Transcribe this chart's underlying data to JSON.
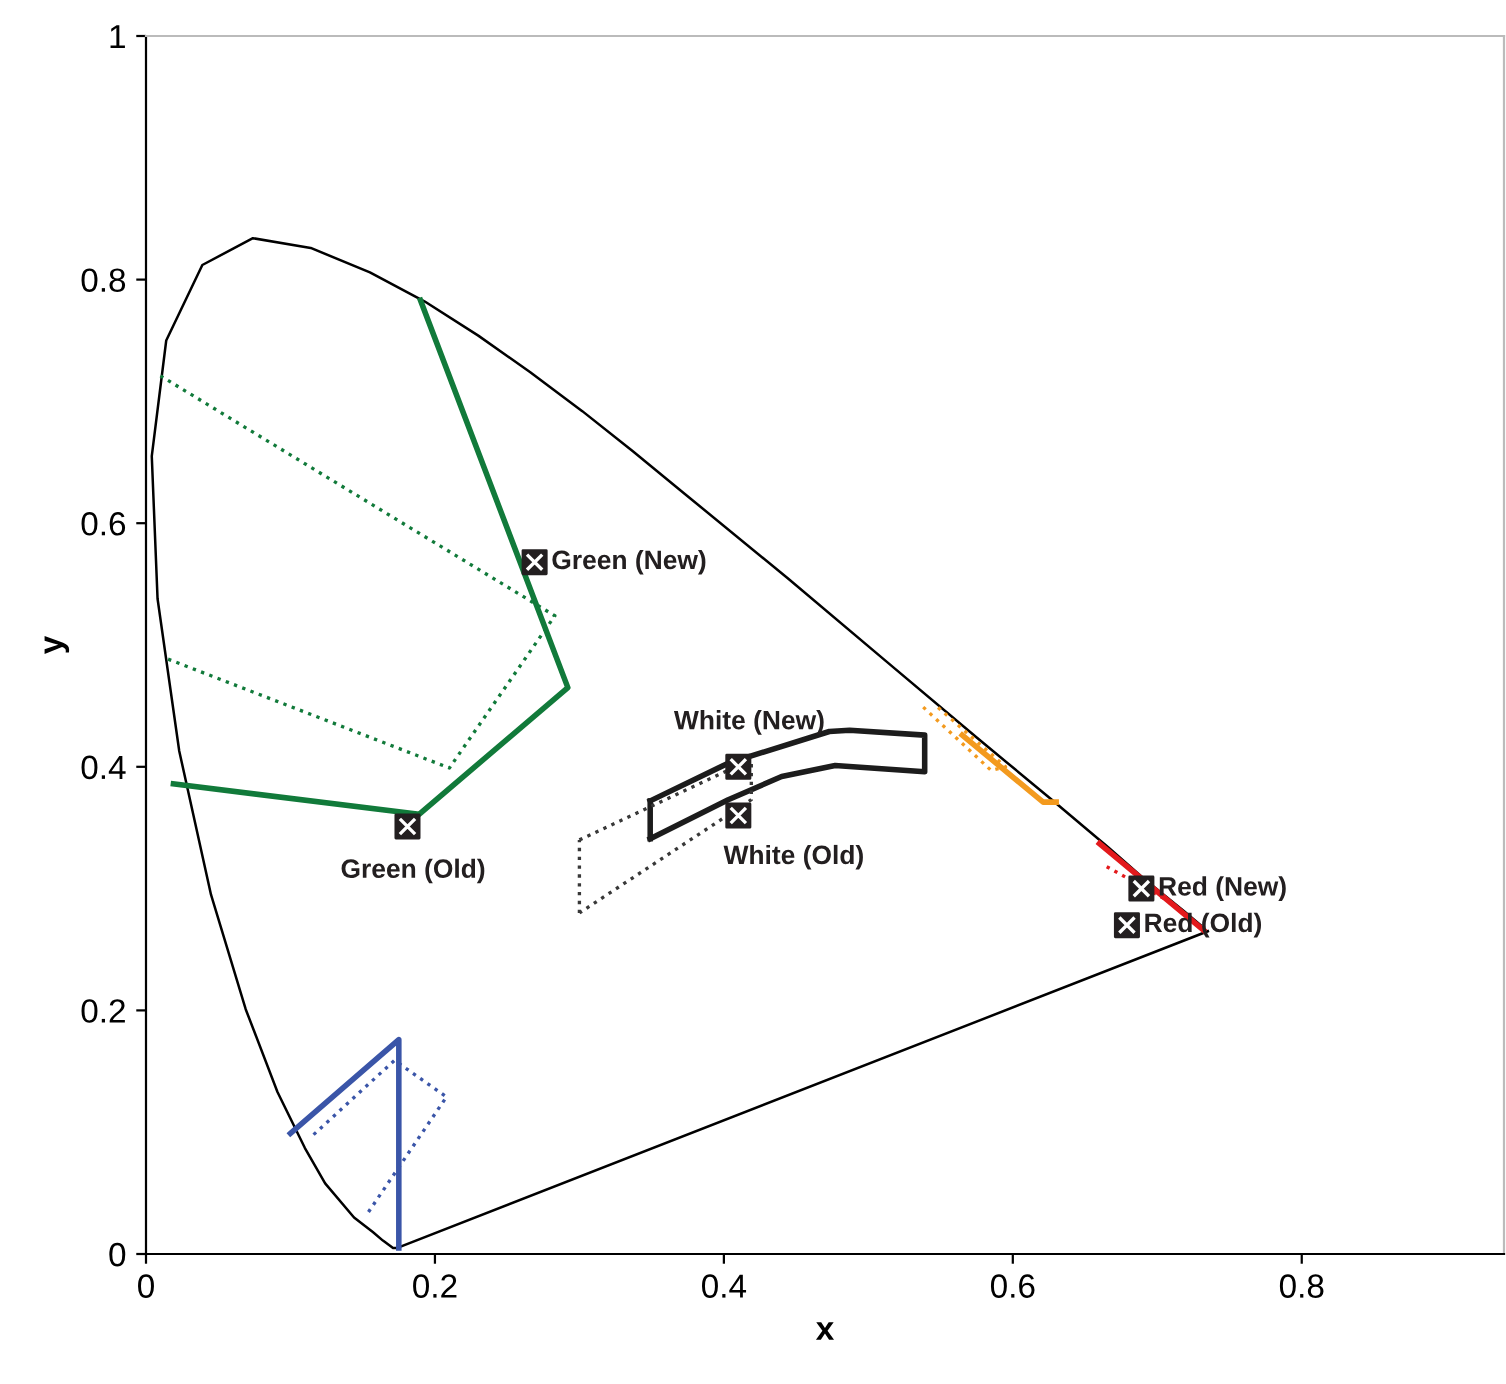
{
  "chart_data": {
    "type": "line",
    "xlabel": "x",
    "ylabel": "y",
    "xlim": [
      0,
      0.94
    ],
    "ylim": [
      0,
      1
    ],
    "xticks": [
      0,
      0.2,
      0.4,
      0.6,
      0.8
    ],
    "yticks": [
      0,
      0.2,
      0.4,
      0.6,
      0.8,
      1
    ],
    "grid": false,
    "legend": false,
    "marker": "none",
    "series": [
      {
        "color": "#000000",
        "line_style": "solid",
        "x": [
          0.735,
          0.174,
          0.171,
          0.164,
          0.157,
          0.144,
          0.124,
          0.11,
          0.091,
          0.069,
          0.045,
          0.023,
          0.008,
          0.004,
          0.014,
          0.039,
          0.074,
          0.114,
          0.155,
          0.193,
          0.23,
          0.266,
          0.302,
          0.337,
          0.373,
          0.444,
          0.512,
          0.575,
          0.627,
          0.666,
          0.691,
          0.719,
          0.73
        ],
        "values": [
          0.265,
          0.005,
          0.005,
          0.011,
          0.018,
          0.03,
          0.058,
          0.087,
          0.133,
          0.201,
          0.295,
          0.413,
          0.538,
          0.655,
          0.75,
          0.812,
          0.834,
          0.826,
          0.806,
          0.782,
          0.754,
          0.724,
          0.692,
          0.659,
          0.624,
          0.555,
          0.487,
          0.424,
          0.373,
          0.334,
          0.308,
          0.281,
          0.27
        ]
      },
      {
        "type": "line",
        "color": "#117a3a",
        "line_style": "solid",
        "x": [
          0.19,
          0.292,
          0.189,
          0.019
        ],
        "values": [
          0.783,
          0.465,
          0.361,
          0.386
        ]
      },
      {
        "type": "line",
        "color": "#117a3a",
        "line_style": "dotted",
        "x": [
          0.01,
          0.283,
          0.21,
          0.014
        ],
        "values": [
          0.721,
          0.524,
          0.399,
          0.489
        ]
      },
      {
        "type": "line",
        "color": "#1c1c1c",
        "line_style": "solid",
        "x": [
          0.349,
          0.403,
          0.473,
          0.487,
          0.539,
          0.539,
          0.477,
          0.44,
          0.403,
          0.349
        ],
        "values": [
          0.372,
          0.403,
          0.429,
          0.43,
          0.426,
          0.396,
          0.401,
          0.392,
          0.373,
          0.341
        ]
      },
      {
        "type": "line",
        "color": "#1c1c1c",
        "line_style": "solid",
        "x": [
          0.349,
          0.349
        ],
        "values": [
          0.341,
          0.372
        ]
      },
      {
        "type": "line",
        "color": "#383838",
        "line_style": "dotted",
        "x": [
          0.3,
          0.419,
          0.419,
          0.3
        ],
        "values": [
          0.34,
          0.406,
          0.373,
          0.28
        ]
      },
      {
        "type": "line",
        "color": "#383838",
        "line_style": "dotted",
        "x": [
          0.3,
          0.3
        ],
        "values": [
          0.28,
          0.34
        ]
      },
      {
        "type": "line",
        "color": "#f39a1e",
        "line_style": "solid",
        "x": [
          0.565,
          0.621,
          0.63
        ],
        "values": [
          0.426,
          0.371,
          0.371
        ]
      },
      {
        "type": "line",
        "color": "#f39a1e",
        "line_style": "dotted",
        "x": [
          0.538,
          0.585,
          0.595,
          0.548
        ],
        "values": [
          0.449,
          0.397,
          0.4,
          0.449
        ]
      },
      {
        "type": "line",
        "color": "#e3191c",
        "line_style": "solid",
        "x": [
          0.66,
          0.732
        ],
        "values": [
          0.337,
          0.266
        ]
      },
      {
        "type": "line",
        "color": "#e3191c",
        "line_style": "dotted",
        "x": [
          0.665,
          0.706
        ],
        "values": [
          0.318,
          0.291
        ]
      },
      {
        "type": "line",
        "color": "#3a55a8",
        "line_style": "solid",
        "x": [
          0.1,
          0.175,
          0.175
        ],
        "values": [
          0.099,
          0.176,
          0.005
        ]
      },
      {
        "type": "line",
        "color": "#3a55a8",
        "line_style": "dotted",
        "x": [
          0.116,
          0.172,
          0.208,
          0.152
        ],
        "values": [
          0.098,
          0.159,
          0.129,
          0.031
        ]
      },
      {
        "type": "scatter",
        "marker": "square",
        "color": "#231f20",
        "name": "Green (New)",
        "x": [
          0.269
        ],
        "values": [
          0.568
        ]
      },
      {
        "type": "scatter",
        "marker": "square",
        "color": "#231f20",
        "name": "Green (Old)",
        "x": [
          0.181
        ],
        "values": [
          0.351
        ]
      },
      {
        "type": "scatter",
        "marker": "square",
        "color": "#231f20",
        "name": "White (New)",
        "x": [
          0.41
        ],
        "values": [
          0.4
        ]
      },
      {
        "type": "scatter",
        "marker": "square",
        "color": "#231f20",
        "name": "White (Old)",
        "x": [
          0.41
        ],
        "values": [
          0.36
        ]
      },
      {
        "type": "scatter",
        "marker": "square",
        "color": "#231f20",
        "name": "Red (New)",
        "x": [
          0.689
        ],
        "values": [
          0.3
        ]
      },
      {
        "type": "scatter",
        "marker": "square",
        "color": "#231f20",
        "name": "Red (Old)",
        "x": [
          0.679
        ],
        "values": [
          0.27
        ]
      }
    ]
  }
}
